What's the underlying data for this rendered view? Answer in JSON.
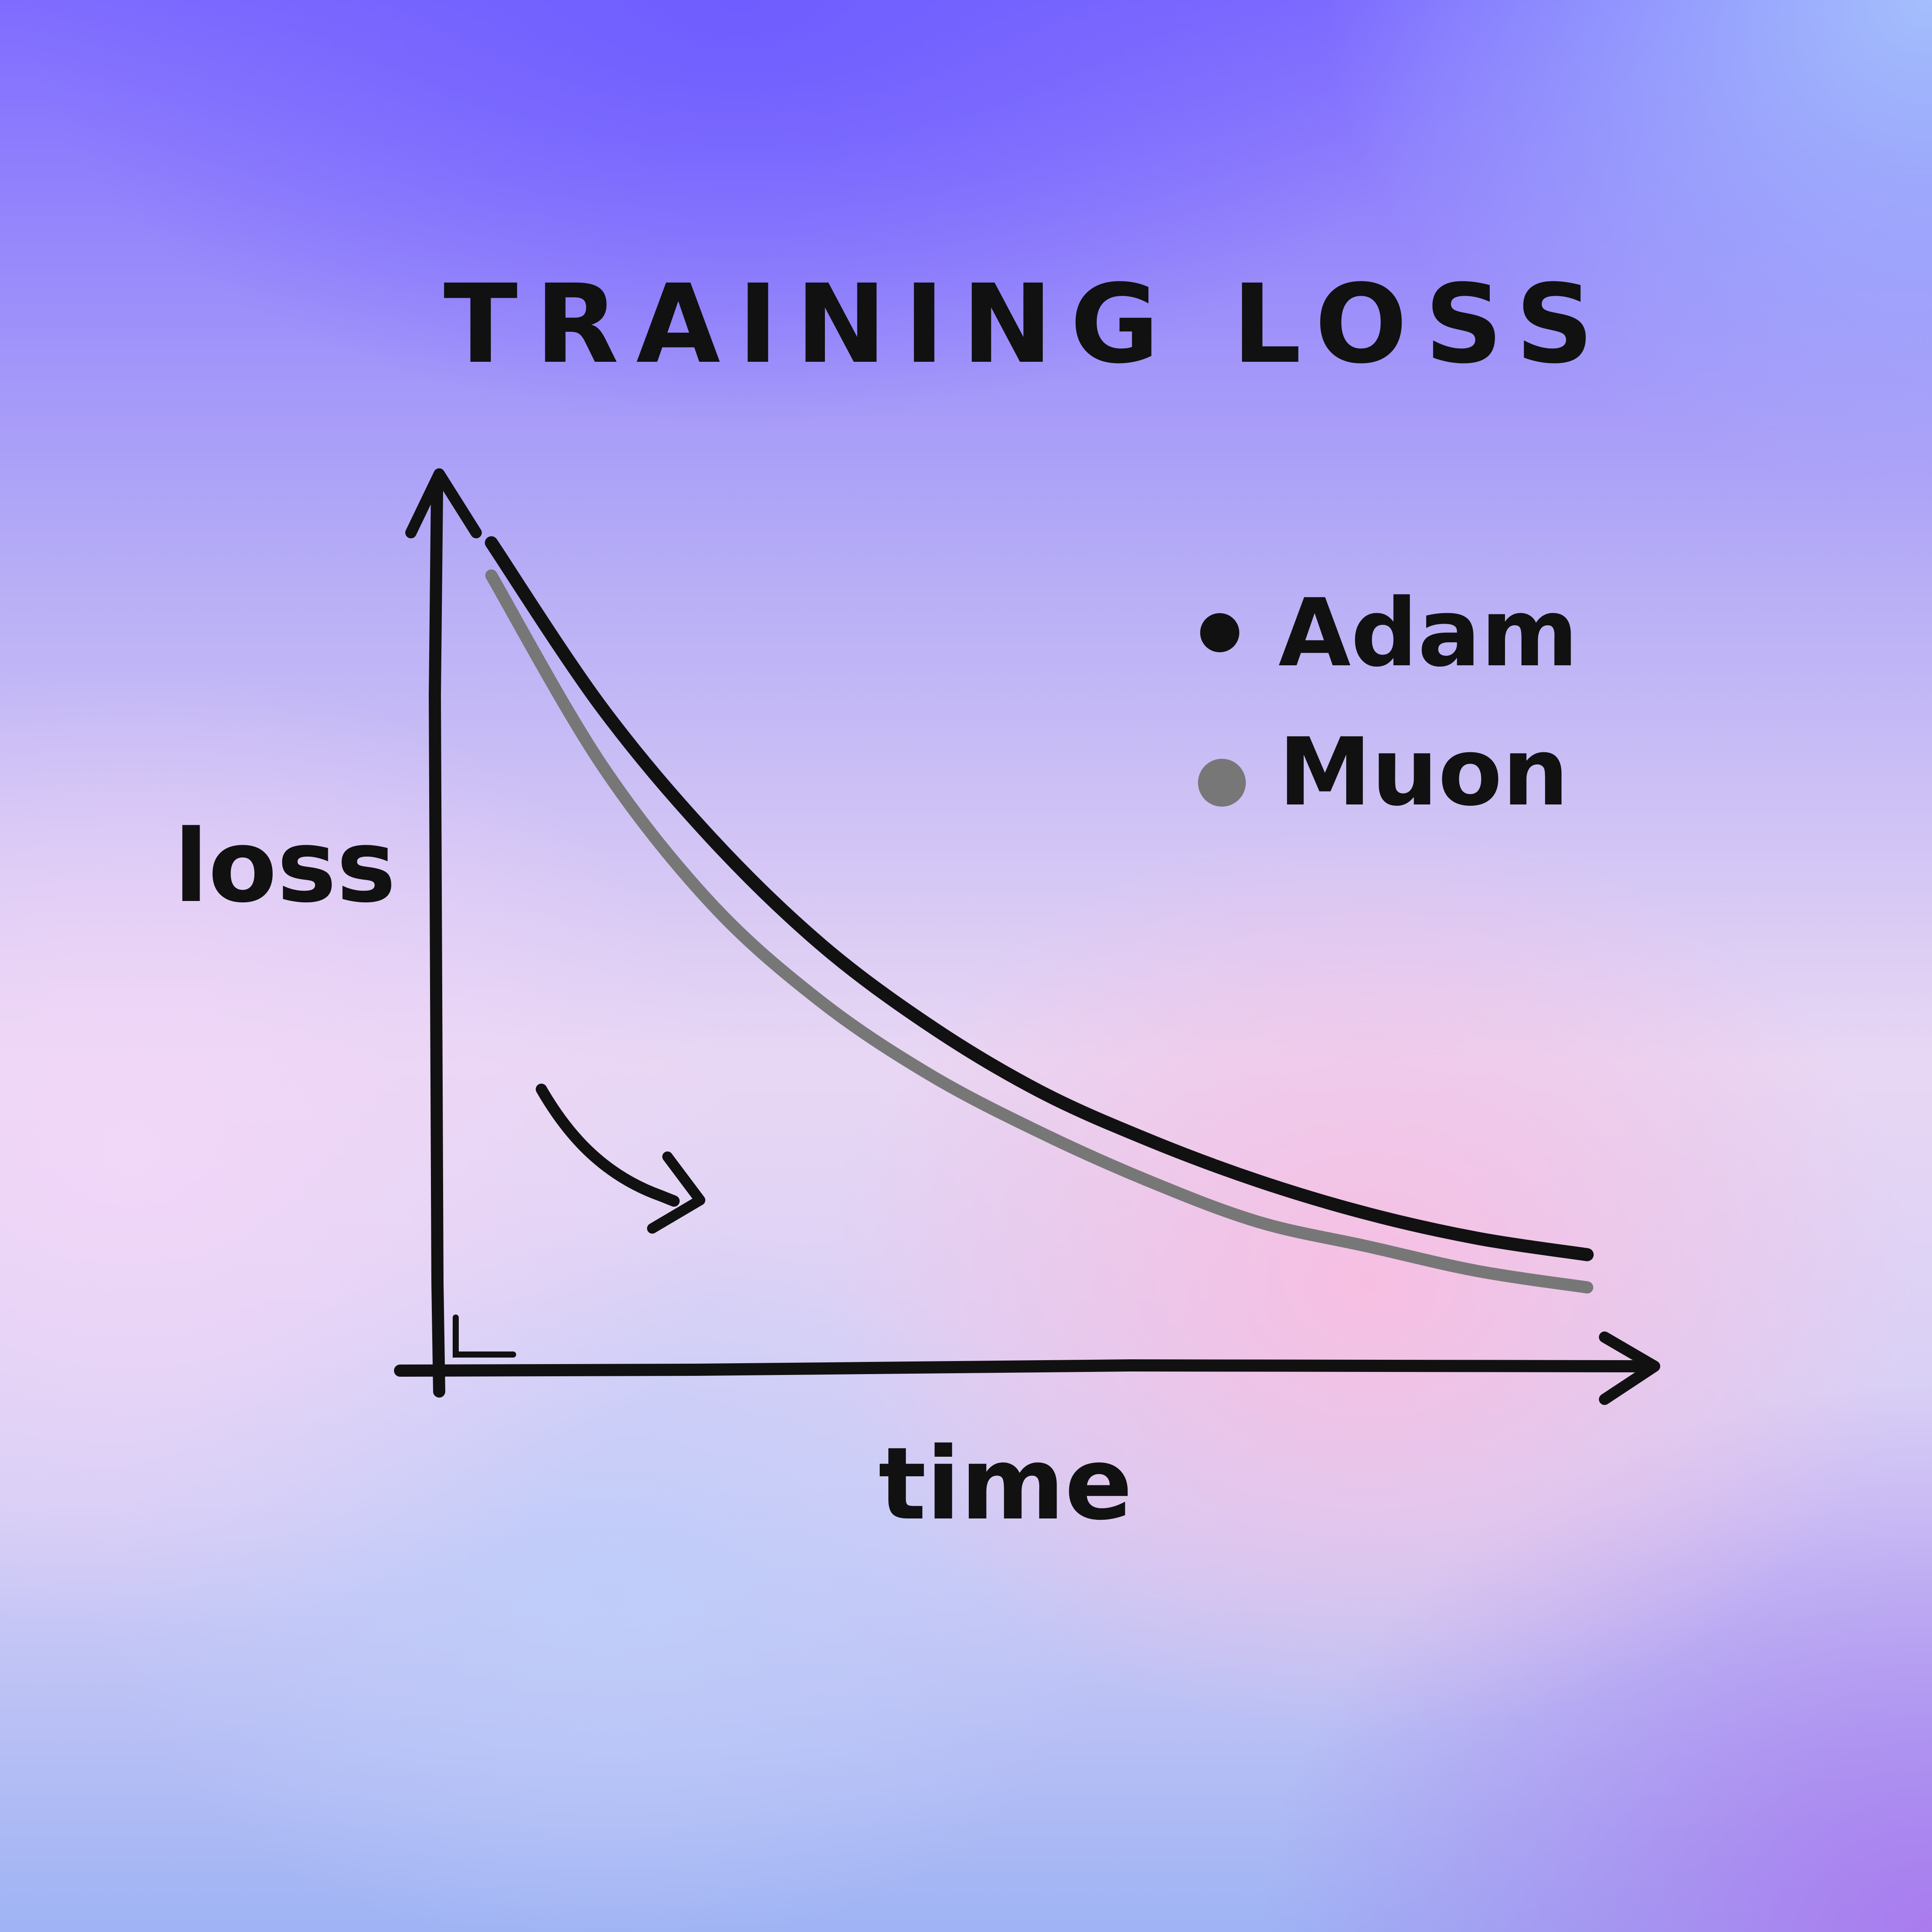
{
  "chart_data": {
    "type": "line",
    "title": "TRAINING LOSS",
    "xlabel": "time",
    "ylabel": "loss",
    "x_ticks": "none",
    "y_ticks": "none",
    "grid": false,
    "legend_position": "top-right",
    "x": [
      0,
      1,
      2,
      3,
      4,
      5,
      6,
      7,
      8,
      9,
      10
    ],
    "series": [
      {
        "name": "Adam",
        "color": "#111111",
        "values": [
          1.0,
          0.8,
          0.64,
          0.51,
          0.41,
          0.33,
          0.27,
          0.22,
          0.18,
          0.15,
          0.13
        ]
      },
      {
        "name": "Muon",
        "color": "#777777",
        "values": [
          0.96,
          0.73,
          0.56,
          0.44,
          0.35,
          0.28,
          0.22,
          0.17,
          0.14,
          0.11,
          0.09
        ]
      }
    ],
    "ylim": [
      0,
      1.1
    ]
  }
}
